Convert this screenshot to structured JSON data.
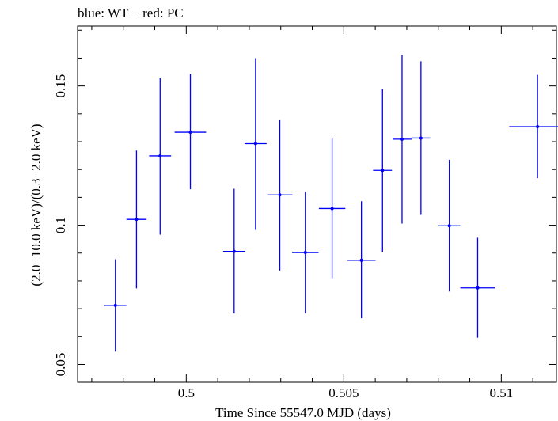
{
  "chart_data": {
    "type": "scatter",
    "title": "blue: WT − red: PC",
    "xlabel": "Time Since 55547.0 MJD (days)",
    "ylabel": "(2.0−10.0 keV)/(0.3−2.0 keV)",
    "xlim": [
      0.49655,
      0.51175
    ],
    "ylim": [
      0.0436,
      0.1715
    ],
    "x_ticks": [
      {
        "value": 0.5,
        "label": "0.5"
      },
      {
        "value": 0.505,
        "label": "0.505"
      },
      {
        "value": 0.51,
        "label": "0.51"
      }
    ],
    "y_ticks": [
      {
        "value": 0.05,
        "label": "0.05"
      },
      {
        "value": 0.1,
        "label": "0.1"
      },
      {
        "value": 0.15,
        "label": "0.15"
      }
    ],
    "grid": false,
    "series": [
      {
        "color": "#0000ff",
        "points": [
          {
            "x": 0.49775,
            "y": 0.0712,
            "xerr": 0.00035,
            "ylo": 0.0546,
            "yhi": 0.0878
          },
          {
            "x": 0.49842,
            "y": 0.1021,
            "xerr": 0.00032,
            "ylo": 0.0773,
            "yhi": 0.1268
          },
          {
            "x": 0.49917,
            "y": 0.1249,
            "xerr": 0.00035,
            "ylo": 0.0966,
            "yhi": 0.1529
          },
          {
            "x": 0.50013,
            "y": 0.1334,
            "xerr": 0.0005,
            "ylo": 0.1129,
            "yhi": 0.1543
          },
          {
            "x": 0.50152,
            "y": 0.0906,
            "xerr": 0.00035,
            "ylo": 0.0683,
            "yhi": 0.1131
          },
          {
            "x": 0.5022,
            "y": 0.1293,
            "xerr": 0.00035,
            "ylo": 0.0983,
            "yhi": 0.16
          },
          {
            "x": 0.50297,
            "y": 0.1109,
            "xerr": 0.0004,
            "ylo": 0.0837,
            "yhi": 0.1377
          },
          {
            "x": 0.50378,
            "y": 0.0902,
            "xerr": 0.00042,
            "ylo": 0.0683,
            "yhi": 0.112
          },
          {
            "x": 0.50463,
            "y": 0.106,
            "xerr": 0.00042,
            "ylo": 0.0809,
            "yhi": 0.1311
          },
          {
            "x": 0.50556,
            "y": 0.0874,
            "xerr": 0.00045,
            "ylo": 0.0666,
            "yhi": 0.1086
          },
          {
            "x": 0.50623,
            "y": 0.1197,
            "xerr": 0.0003,
            "ylo": 0.0905,
            "yhi": 0.1489
          },
          {
            "x": 0.50685,
            "y": 0.1309,
            "xerr": 0.0003,
            "ylo": 0.1006,
            "yhi": 0.1612
          },
          {
            "x": 0.50745,
            "y": 0.1313,
            "xerr": 0.0003,
            "ylo": 0.1037,
            "yhi": 0.1589
          },
          {
            "x": 0.50835,
            "y": 0.0998,
            "xerr": 0.00035,
            "ylo": 0.0762,
            "yhi": 0.1235
          },
          {
            "x": 0.50925,
            "y": 0.0775,
            "xerr": 0.00055,
            "ylo": 0.0596,
            "yhi": 0.0955
          },
          {
            "x": 0.51115,
            "y": 0.1354,
            "xerr": 0.0009,
            "ylo": 0.1169,
            "yhi": 0.154
          }
        ]
      }
    ]
  }
}
